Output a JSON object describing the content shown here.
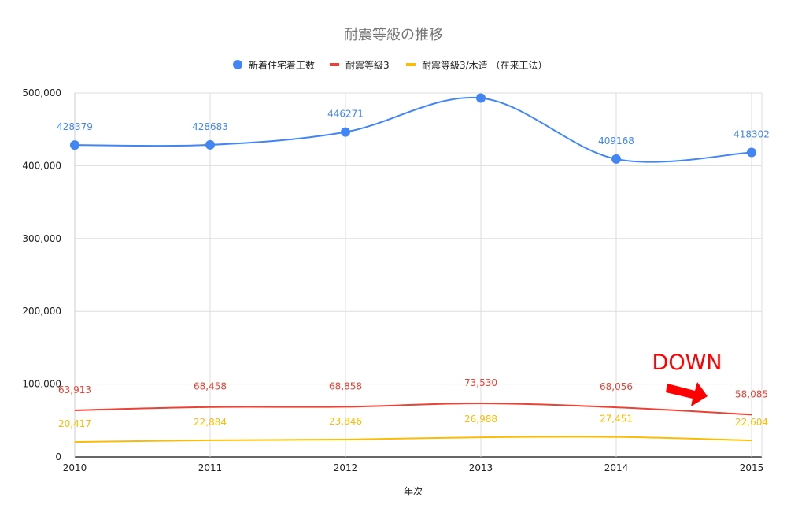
{
  "chart_data": {
    "type": "line",
    "title": "耐震等級の推移",
    "xlabel": "年次",
    "ylabel": "",
    "categories": [
      "2010",
      "2011",
      "2012",
      "2013",
      "2014",
      "2015"
    ],
    "ylim": [
      0,
      500000
    ],
    "yticks": [
      0,
      100000,
      200000,
      300000,
      400000,
      500000
    ],
    "ytick_labels": [
      "0",
      "100,000",
      "200,000",
      "300,000",
      "400,000",
      "500,000"
    ],
    "grid": true,
    "legend_position": "top",
    "series": [
      {
        "name": "新着住宅着工数",
        "color": "#4285f4",
        "marker": "circle",
        "values": [
          428379,
          428683,
          446271,
          493000,
          409168,
          418302
        ],
        "labels": [
          "428379",
          "428683",
          "446271",
          null,
          "409168",
          "418302"
        ]
      },
      {
        "name": "耐震等級3",
        "color": "#ea4335",
        "marker": "none",
        "values": [
          63913,
          68458,
          68858,
          73530,
          68056,
          58085
        ],
        "labels": [
          "63,913",
          "68,458",
          "68,858",
          "73,530",
          "68,056",
          "58,085"
        ]
      },
      {
        "name": "耐震等級3/木造 （在来工法）",
        "color": "#fbbc04",
        "marker": "none",
        "values": [
          20417,
          22884,
          23846,
          26988,
          27451,
          22604
        ],
        "labels": [
          "20,417",
          "22,884",
          "23,846",
          "26,988",
          "27,451",
          "22,604"
        ]
      }
    ],
    "annotations": [
      {
        "text": "DOWN",
        "color": "#ff0000"
      }
    ]
  }
}
